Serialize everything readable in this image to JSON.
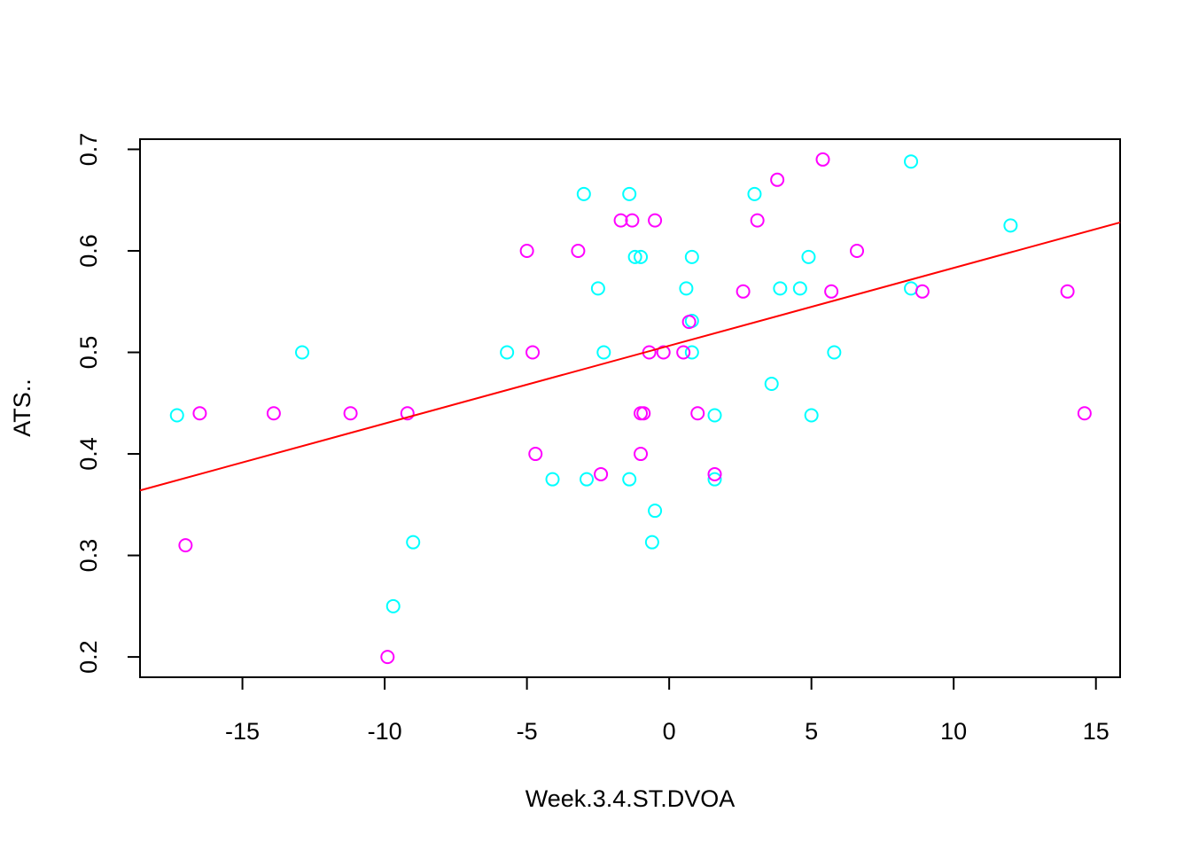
{
  "chart_data": {
    "type": "scatter",
    "title": "",
    "xlabel": "Week.3.4.ST.DVOA",
    "ylabel": "ATS..",
    "xlim": [
      -18.6,
      15.85
    ],
    "ylim": [
      0.18,
      0.71
    ],
    "xticks": [
      -15,
      -10,
      -5,
      0,
      5,
      10,
      15
    ],
    "yticks": [
      0.2,
      0.3,
      0.4,
      0.5,
      0.6,
      0.7
    ],
    "xtick_labels": [
      "-15",
      "-10",
      "-5",
      "0",
      "5",
      "10",
      "15"
    ],
    "ytick_labels": [
      "0.2",
      "0.3",
      "0.4",
      "0.5",
      "0.6",
      "0.7"
    ],
    "grid": false,
    "legend": "none",
    "series": [
      {
        "color": "#00ffff",
        "points": [
          [
            -17.3,
            0.438
          ],
          [
            -12.9,
            0.5
          ],
          [
            -9.7,
            0.25
          ],
          [
            -9.0,
            0.313
          ],
          [
            -5.7,
            0.5
          ],
          [
            -4.1,
            0.375
          ],
          [
            -3.0,
            0.656
          ],
          [
            -2.9,
            0.375
          ],
          [
            -2.5,
            0.563
          ],
          [
            -2.3,
            0.5
          ],
          [
            -1.4,
            0.656
          ],
          [
            -1.4,
            0.375
          ],
          [
            -1.2,
            0.594
          ],
          [
            -1.0,
            0.594
          ],
          [
            -0.6,
            0.313
          ],
          [
            -0.5,
            0.344
          ],
          [
            0.6,
            0.563
          ],
          [
            0.8,
            0.531
          ],
          [
            0.8,
            0.594
          ],
          [
            0.8,
            0.5
          ],
          [
            1.6,
            0.438
          ],
          [
            1.6,
            0.375
          ],
          [
            3.0,
            0.656
          ],
          [
            3.6,
            0.469
          ],
          [
            3.9,
            0.563
          ],
          [
            4.6,
            0.563
          ],
          [
            4.9,
            0.594
          ],
          [
            5.0,
            0.438
          ],
          [
            5.8,
            0.5
          ],
          [
            8.5,
            0.688
          ],
          [
            8.5,
            0.563
          ],
          [
            12.0,
            0.625
          ]
        ]
      },
      {
        "color": "#ff00ff",
        "points": [
          [
            -17.0,
            0.31
          ],
          [
            -16.5,
            0.44
          ],
          [
            -13.9,
            0.44
          ],
          [
            -11.2,
            0.44
          ],
          [
            -9.9,
            0.2
          ],
          [
            -9.2,
            0.44
          ],
          [
            -5.0,
            0.6
          ],
          [
            -4.8,
            0.5
          ],
          [
            -4.7,
            0.4
          ],
          [
            -3.2,
            0.6
          ],
          [
            -2.4,
            0.38
          ],
          [
            -1.7,
            0.63
          ],
          [
            -1.3,
            0.63
          ],
          [
            -1.0,
            0.44
          ],
          [
            -1.0,
            0.4
          ],
          [
            -0.9,
            0.44
          ],
          [
            -0.7,
            0.5
          ],
          [
            -0.5,
            0.63
          ],
          [
            -0.2,
            0.5
          ],
          [
            0.5,
            0.5
          ],
          [
            0.7,
            0.53
          ],
          [
            1.0,
            0.44
          ],
          [
            1.6,
            0.38
          ],
          [
            2.6,
            0.56
          ],
          [
            3.1,
            0.63
          ],
          [
            3.8,
            0.67
          ],
          [
            5.4,
            0.69
          ],
          [
            5.7,
            0.56
          ],
          [
            6.6,
            0.6
          ],
          [
            8.9,
            0.56
          ],
          [
            14.0,
            0.56
          ],
          [
            14.6,
            0.44
          ]
        ]
      }
    ],
    "regression_line": {
      "color": "#ff0000",
      "x": [
        -18.6,
        15.85
      ],
      "y": [
        0.364,
        0.628
      ]
    }
  }
}
